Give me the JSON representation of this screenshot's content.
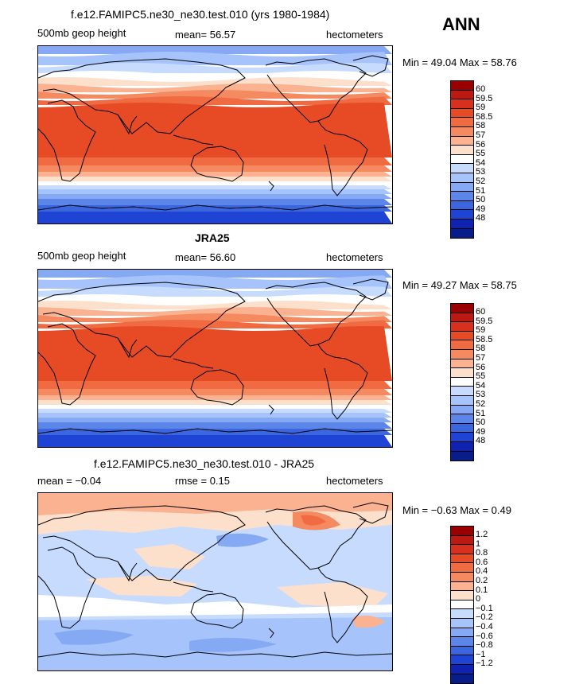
{
  "season": "ANN",
  "panels": [
    {
      "title": "f.e12.FAMIPC5.ne30_ne30.test.010 (yrs 1980-1984)",
      "variable": "500mb geop height",
      "stat_text": "mean=  56.57",
      "units": "hectometers",
      "minmax": "Min =   49.04  Max =   58.76",
      "colorbar_labels": [
        "60",
        "59.5",
        "59",
        "58.5",
        "58",
        "57",
        "56",
        "55",
        "54",
        "53",
        "52",
        "51",
        "50",
        "49",
        "48"
      ]
    },
    {
      "title": "JRA25",
      "variable": "500mb geop height",
      "stat_text": "mean=  56.60",
      "units": "hectometers",
      "minmax": "Min =   49.27  Max =   58.75",
      "colorbar_labels": [
        "60",
        "59.5",
        "59",
        "58.5",
        "58",
        "57",
        "56",
        "55",
        "54",
        "53",
        "52",
        "51",
        "50",
        "49",
        "48"
      ]
    },
    {
      "title": "f.e12.FAMIPC5.ne30_ne30.test.010 - JRA25",
      "variable": "mean =   −0.04",
      "stat_text": "rmse =    0.15",
      "units": "hectometers",
      "minmax": "Min =  −0.63  Max =    0.49",
      "colorbar_labels": [
        "1.2",
        "1",
        "0.8",
        "0.6",
        "0.4",
        "0.2",
        "0.1",
        "0",
        "−0.1",
        "−0.2",
        "−0.4",
        "−0.6",
        "−0.8",
        "−1",
        "−1.2"
      ]
    }
  ],
  "colors": {
    "levels": [
      "#9b0000",
      "#bb1a12",
      "#d7301f",
      "#e64b25",
      "#f06a42",
      "#f5895f",
      "#fbb291",
      "#fde0cc",
      "#ffffff",
      "#c7dbff",
      "#a6c4fb",
      "#86a9f3",
      "#5c85ea",
      "#3a66e0",
      "#1f44d4",
      "#0f23b0",
      "#081c8a"
    ]
  }
}
